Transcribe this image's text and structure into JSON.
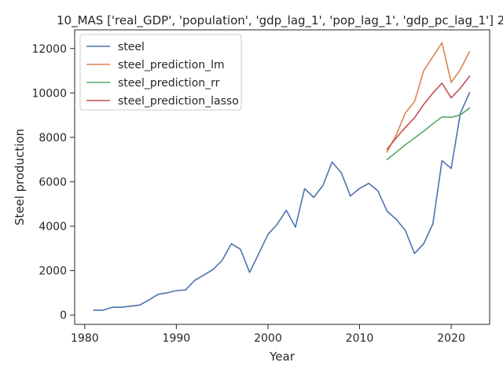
{
  "chart_data": {
    "type": "line",
    "title": "10_MAS ['real_GDP', 'population', 'gdp_lag_1', 'pop_lag_1', 'gdp_pc_lag_1'] 2",
    "xlabel": "Year",
    "ylabel": "Steel production",
    "xlim": [
      1978.9,
      2024.2
    ],
    "ylim": [
      -420,
      12840
    ],
    "x_ticks": [
      1980,
      1990,
      2000,
      2010,
      2020
    ],
    "y_ticks": [
      0,
      2000,
      4000,
      6000,
      8000,
      10000,
      12000
    ],
    "grid": false,
    "legend_position": "top-left",
    "series": [
      {
        "name": "steel",
        "color": "#4c72b0",
        "x": [
          1981,
          1982,
          1983,
          1984,
          1985,
          1986,
          1987,
          1988,
          1989,
          1990,
          1991,
          1992,
          1993,
          1994,
          1995,
          1996,
          1997,
          1998,
          1999,
          2000,
          2001,
          2002,
          2003,
          2004,
          2005,
          2006,
          2007,
          2008,
          2009,
          2010,
          2011,
          2012,
          2013,
          2014,
          2015,
          2016,
          2017,
          2018,
          2019,
          2020,
          2021,
          2022
        ],
        "y": [
          220,
          220,
          350,
          350,
          400,
          450,
          680,
          930,
          1000,
          1100,
          1130,
          1560,
          1800,
          2050,
          2460,
          3210,
          2960,
          1920,
          2770,
          3630,
          4080,
          4720,
          3960,
          5690,
          5300,
          5830,
          6890,
          6410,
          5360,
          5700,
          5930,
          5590,
          4680,
          4310,
          3810,
          2770,
          3210,
          4100,
          6950,
          6600,
          9080,
          10010
        ]
      },
      {
        "name": "steel_prediction_lm",
        "color": "#dd8452",
        "x": [
          2013,
          2014,
          2015,
          2016,
          2017,
          2018,
          2019,
          2020,
          2021,
          2022
        ],
        "y": [
          7340,
          8100,
          9100,
          9610,
          11000,
          11630,
          12260,
          10470,
          11050,
          11860
        ]
      },
      {
        "name": "steel_prediction_rr",
        "color": "#55a868",
        "x": [
          2013,
          2014,
          2015,
          2016,
          2017,
          2018,
          2019,
          2020,
          2021,
          2022
        ],
        "y": [
          7000,
          7330,
          7670,
          7970,
          8280,
          8610,
          8920,
          8900,
          9010,
          9320
        ]
      },
      {
        "name": "steel_prediction_lasso",
        "color": "#c44e52",
        "x": [
          2013,
          2014,
          2015,
          2016,
          2017,
          2018,
          2019,
          2020,
          2021,
          2022
        ],
        "y": [
          7470,
          7970,
          8450,
          8880,
          9480,
          9990,
          10440,
          9780,
          10210,
          10750
        ]
      }
    ]
  }
}
